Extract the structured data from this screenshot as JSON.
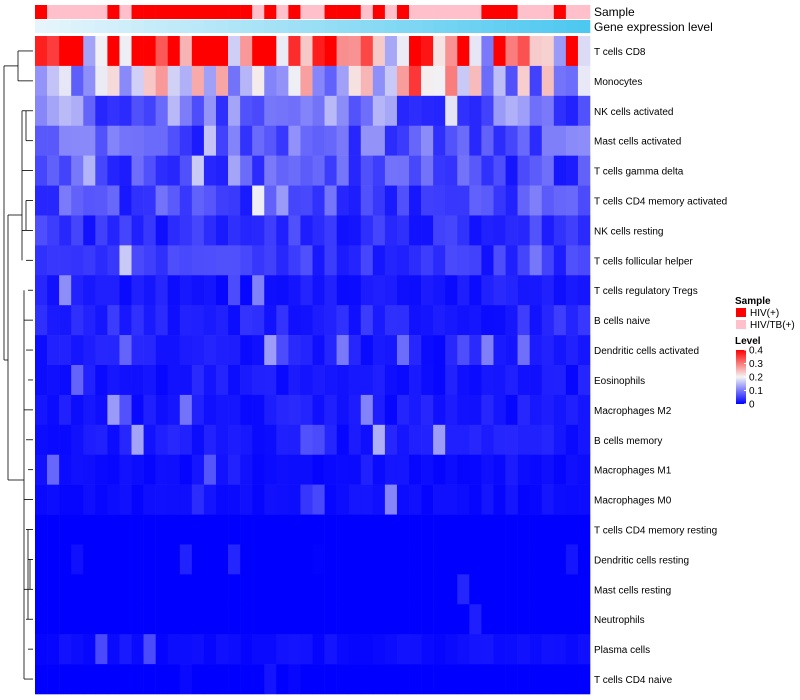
{
  "chart_data": {
    "type": "heatmap",
    "title": "",
    "annotation_tracks": [
      {
        "name": "Sample",
        "values": "HIV(+) / HIV/TB(+) group per column (see legend)"
      },
      {
        "name": "Gene expression level",
        "values": "increasing gradient across columns"
      }
    ],
    "rows": [
      "T cells CD8",
      "Monocytes",
      "NK cells activated",
      "Mast cells activated",
      "T cells gamma delta",
      "T cells CD4 memory activated",
      "NK cells resting",
      "T cells follicular helper",
      "T cells regulatory  Tregs",
      "B cells naive",
      "Dendritic cells activated",
      "Eosinophils",
      "Macrophages M2",
      "B cells memory",
      "Macrophages M1",
      "Macrophages M0",
      "T cells CD4 memory resting",
      "Dendritic cells resting",
      "Mast cells resting",
      "Neutrophils",
      "Plasma cells",
      "T cells CD4 naive"
    ],
    "n_columns": 46,
    "sample_groups": [
      "HIV(+)",
      "HIV/TB(+)",
      "HIV/TB(+)",
      "HIV/TB(+)",
      "HIV/TB(+)",
      "HIV/TB(+)",
      "HIV(+)",
      "HIV/TB(+)",
      "HIV(+)",
      "HIV(+)",
      "HIV(+)",
      "HIV(+)",
      "HIV(+)",
      "HIV(+)",
      "HIV(+)",
      "HIV(+)",
      "HIV(+)",
      "HIV(+)",
      "HIV/TB(+)",
      "HIV(+)",
      "HIV/TB(+)",
      "HIV(+)",
      "HIV/TB(+)",
      "HIV/TB(+)",
      "HIV(+)",
      "HIV(+)",
      "HIV(+)",
      "HIV/TB(+)",
      "HIV(+)",
      "HIV/TB(+)",
      "HIV(+)",
      "HIV/TB(+)",
      "HIV/TB(+)",
      "HIV/TB(+)",
      "HIV/TB(+)",
      "HIV/TB(+)",
      "HIV/TB(+)",
      "HIV(+)",
      "HIV(+)",
      "HIV(+)",
      "HIV/TB(+)",
      "HIV/TB(+)",
      "HIV/TB(+)",
      "HIV(+)",
      "HIV/TB(+)",
      "HIV/TB(+)"
    ],
    "row_means": [
      0.33,
      0.17,
      0.09,
      0.07,
      0.06,
      0.06,
      0.04,
      0.04,
      0.02,
      0.03,
      0.02,
      0.02,
      0.02,
      0.02,
      0.01,
      0.01,
      0.005,
      0.004,
      0.001,
      0.0,
      0.01,
      0.005
    ],
    "values": [],
    "legend": {
      "sample": {
        "title": "Sample",
        "entries": [
          {
            "label": "HIV(+)",
            "color": "#ff0000"
          },
          {
            "label": "HIV/TB(+)",
            "color": "#ffc0cb"
          }
        ]
      },
      "level": {
        "title": "Level",
        "ticks": [
          0,
          0.1,
          0.2,
          0.3,
          0.4
        ],
        "tick_labels": [
          "0",
          "0.1",
          "0.2",
          "0.3",
          "0.4"
        ],
        "range": [
          0,
          0.4
        ]
      }
    }
  },
  "colors": {
    "low": "#0000ff",
    "mid": "#f5f5f5",
    "high": "#ff0000",
    "hiv": "#ff0000",
    "hivtb": "#ffc0cb",
    "expr_low": "#e6f5fb",
    "expr_high": "#4dc8f0"
  }
}
